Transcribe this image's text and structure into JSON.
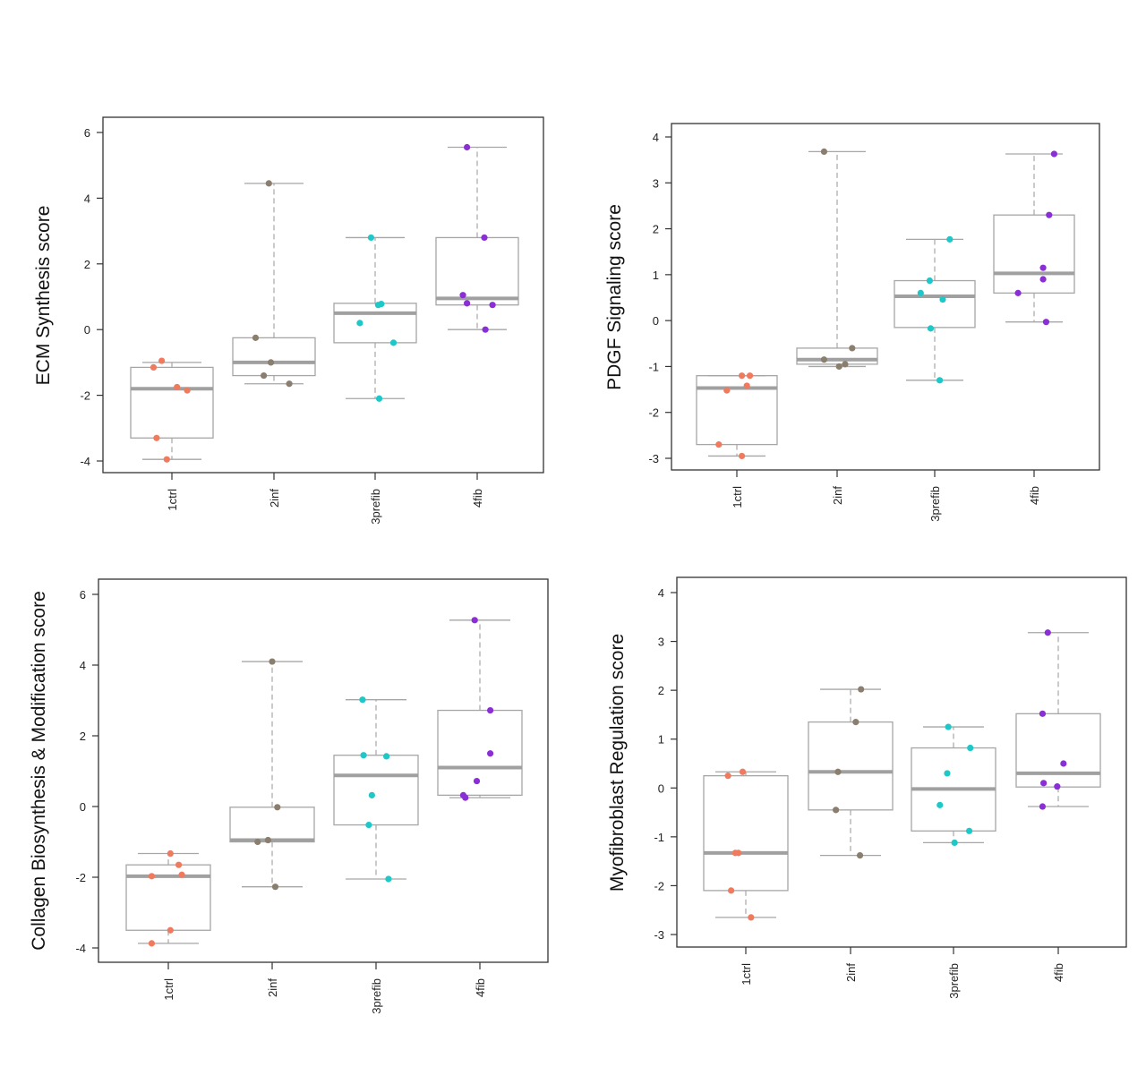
{
  "chart_data": [
    {
      "type": "box",
      "panel": "top-left",
      "title": "",
      "xlabel": "",
      "ylabel": "ECM Synthesis score",
      "ylim": [
        -4.4,
        6.4
      ],
      "yticks": [
        -4,
        -2,
        0,
        2,
        4,
        6
      ],
      "ytick_labels": [
        "-4",
        "-2",
        "0",
        "2",
        "4",
        "6"
      ],
      "categories": [
        "1ctrl",
        "2inf",
        "3prefib",
        "4fib"
      ],
      "colors": [
        "#f07a5e",
        "#8a7e6e",
        "#1ec8c8",
        "#8a2ed6"
      ],
      "grid": false,
      "boxes": [
        {
          "q1": -3.3,
          "median": -1.8,
          "q3": -1.15,
          "whisker_low": -3.95,
          "whisker_high": -1.0
        },
        {
          "q1": -1.4,
          "median": -1.0,
          "q3": -0.25,
          "whisker_low": -1.65,
          "whisker_high": 4.45
        },
        {
          "q1": -0.4,
          "median": 0.5,
          "q3": 0.8,
          "whisker_low": -2.1,
          "whisker_high": 2.8
        },
        {
          "q1": 0.75,
          "median": 0.95,
          "q3": 2.8,
          "whisker_low": 0.0,
          "whisker_high": 5.55
        }
      ],
      "points": [
        [
          {
            "x": -0.1,
            "y": -0.95
          },
          {
            "x": -0.18,
            "y": -1.15
          },
          {
            "x": 0.05,
            "y": -1.75
          },
          {
            "x": 0.15,
            "y": -1.85
          },
          {
            "x": -0.15,
            "y": -3.3
          },
          {
            "x": -0.05,
            "y": -3.95
          }
        ],
        [
          {
            "x": -0.18,
            "y": -0.25
          },
          {
            "x": -0.03,
            "y": -1.0
          },
          {
            "x": -0.1,
            "y": -1.4
          },
          {
            "x": 0.15,
            "y": -1.65
          },
          {
            "x": -0.05,
            "y": 4.45
          }
        ],
        [
          {
            "x": -0.04,
            "y": 2.8
          },
          {
            "x": 0.03,
            "y": 0.75
          },
          {
            "x": 0.06,
            "y": 0.78
          },
          {
            "x": -0.15,
            "y": 0.2
          },
          {
            "x": 0.18,
            "y": -0.4
          },
          {
            "x": 0.04,
            "y": -2.1
          }
        ],
        [
          {
            "x": -0.1,
            "y": 5.55
          },
          {
            "x": 0.07,
            "y": 2.8
          },
          {
            "x": -0.14,
            "y": 1.05
          },
          {
            "x": -0.1,
            "y": 0.8
          },
          {
            "x": 0.15,
            "y": 0.75
          },
          {
            "x": 0.08,
            "y": 0.0
          }
        ]
      ]
    },
    {
      "type": "box",
      "panel": "top-right",
      "title": "",
      "xlabel": "",
      "ylabel": "PDGF Signaling score",
      "ylim": [
        -3.25,
        4.3
      ],
      "yticks": [
        -3,
        -2,
        -1,
        0,
        1,
        2,
        3,
        4
      ],
      "ytick_labels": [
        "-3",
        "-2",
        "-1",
        "0",
        "1",
        "2",
        "3",
        "4"
      ],
      "categories": [
        "1ctrl",
        "2inf",
        "3prefib",
        "4fib"
      ],
      "colors": [
        "#f07a5e",
        "#8a7e6e",
        "#1ec8c8",
        "#8a2ed6"
      ],
      "grid": false,
      "boxes": [
        {
          "q1": -2.7,
          "median": -1.47,
          "q3": -1.2,
          "whisker_low": -2.95,
          "whisker_high": -1.2
        },
        {
          "q1": -0.95,
          "median": -0.85,
          "q3": -0.6,
          "whisker_low": -1.0,
          "whisker_high": 3.68
        },
        {
          "q1": -0.15,
          "median": 0.53,
          "q3": 0.87,
          "whisker_low": -1.3,
          "whisker_high": 1.77
        },
        {
          "q1": 0.6,
          "median": 1.03,
          "q3": 2.3,
          "whisker_low": -0.03,
          "whisker_high": 3.63
        }
      ],
      "points": [
        [
          {
            "x": 0.05,
            "y": -1.2
          },
          {
            "x": 0.13,
            "y": -1.2
          },
          {
            "x": 0.1,
            "y": -1.42
          },
          {
            "x": -0.1,
            "y": -1.52
          },
          {
            "x": -0.18,
            "y": -2.7
          },
          {
            "x": 0.05,
            "y": -2.95
          }
        ],
        [
          {
            "x": -0.13,
            "y": 3.68
          },
          {
            "x": 0.15,
            "y": -0.6
          },
          {
            "x": -0.13,
            "y": -0.85
          },
          {
            "x": 0.08,
            "y": -0.95
          },
          {
            "x": 0.02,
            "y": -1.0
          }
        ],
        [
          {
            "x": 0.15,
            "y": 1.77
          },
          {
            "x": -0.05,
            "y": 0.87
          },
          {
            "x": -0.14,
            "y": 0.6
          },
          {
            "x": 0.08,
            "y": 0.46
          },
          {
            "x": -0.04,
            "y": -0.17
          },
          {
            "x": 0.05,
            "y": -1.3
          }
        ],
        [
          {
            "x": 0.2,
            "y": 3.63
          },
          {
            "x": 0.15,
            "y": 2.3
          },
          {
            "x": 0.09,
            "y": 1.15
          },
          {
            "x": 0.09,
            "y": 0.9
          },
          {
            "x": -0.16,
            "y": 0.6
          },
          {
            "x": 0.12,
            "y": -0.03
          }
        ]
      ]
    },
    {
      "type": "box",
      "panel": "bottom-left",
      "title": "",
      "xlabel": "",
      "ylabel": "Collagen Biosynthesis & Modification score",
      "ylim": [
        -4.4,
        6.4
      ],
      "yticks": [
        -4,
        -2,
        0,
        2,
        4,
        6
      ],
      "ytick_labels": [
        "-4",
        "-2",
        "0",
        "2",
        "4",
        "6"
      ],
      "categories": [
        "1ctrl",
        "2inf",
        "3prefib",
        "4fib"
      ],
      "colors": [
        "#f07a5e",
        "#8a7e6e",
        "#1ec8c8",
        "#8a2ed6"
      ],
      "grid": false,
      "boxes": [
        {
          "q1": -3.5,
          "median": -1.97,
          "q3": -1.65,
          "whisker_low": -3.87,
          "whisker_high": -1.33
        },
        {
          "q1": -1.0,
          "median": -0.95,
          "q3": -0.02,
          "whisker_low": -2.27,
          "whisker_high": 4.1
        },
        {
          "q1": -0.52,
          "median": 0.88,
          "q3": 1.45,
          "whisker_low": -2.05,
          "whisker_high": 3.02
        },
        {
          "q1": 0.32,
          "median": 1.1,
          "q3": 2.72,
          "whisker_low": 0.25,
          "whisker_high": 5.27
        }
      ],
      "points": [
        [
          {
            "x": 0.02,
            "y": -1.33
          },
          {
            "x": 0.1,
            "y": -1.65
          },
          {
            "x": -0.16,
            "y": -1.97
          },
          {
            "x": 0.13,
            "y": -1.93
          },
          {
            "x": 0.02,
            "y": -3.5
          },
          {
            "x": -0.16,
            "y": -3.87
          }
        ],
        [
          {
            "x": 0.0,
            "y": 4.1
          },
          {
            "x": 0.05,
            "y": -0.02
          },
          {
            "x": -0.04,
            "y": -0.95
          },
          {
            "x": -0.14,
            "y": -1.0
          },
          {
            "x": 0.03,
            "y": -2.27
          }
        ],
        [
          {
            "x": -0.13,
            "y": 3.02
          },
          {
            "x": -0.12,
            "y": 1.45
          },
          {
            "x": 0.1,
            "y": 1.42
          },
          {
            "x": -0.04,
            "y": 0.32
          },
          {
            "x": -0.07,
            "y": -0.52
          },
          {
            "x": 0.12,
            "y": -2.05
          }
        ],
        [
          {
            "x": -0.05,
            "y": 5.27
          },
          {
            "x": 0.1,
            "y": 2.72
          },
          {
            "x": 0.1,
            "y": 1.5
          },
          {
            "x": -0.03,
            "y": 0.72
          },
          {
            "x": -0.16,
            "y": 0.32
          },
          {
            "x": -0.14,
            "y": 0.25
          }
        ]
      ]
    },
    {
      "type": "box",
      "panel": "bottom-right",
      "title": "",
      "xlabel": "",
      "ylabel": "Myofibroblast Regulation score",
      "ylim": [
        -3.3,
        4.3
      ],
      "yticks": [
        -3,
        -2,
        -1,
        0,
        1,
        2,
        3,
        4
      ],
      "ytick_labels": [
        "-3",
        "-2",
        "-1",
        "0",
        "1",
        "2",
        "3",
        "4"
      ],
      "categories": [
        "1ctrl",
        "2inf",
        "3prefib",
        "4fib"
      ],
      "colors": [
        "#f07a5e",
        "#8a7e6e",
        "#1ec8c8",
        "#8a2ed6"
      ],
      "grid": false,
      "boxes": [
        {
          "q1": -2.1,
          "median": -1.33,
          "q3": 0.25,
          "whisker_low": -2.65,
          "whisker_high": 0.33
        },
        {
          "q1": -0.45,
          "median": 0.33,
          "q3": 1.35,
          "whisker_low": -1.38,
          "whisker_high": 2.02
        },
        {
          "q1": -0.88,
          "median": -0.02,
          "q3": 0.82,
          "whisker_low": -1.12,
          "whisker_high": 1.25
        },
        {
          "q1": 0.02,
          "median": 0.3,
          "q3": 1.52,
          "whisker_low": -0.38,
          "whisker_high": 3.18
        }
      ],
      "points": [
        [
          {
            "x": -0.17,
            "y": 0.25
          },
          {
            "x": -0.03,
            "y": 0.33
          },
          {
            "x": -0.1,
            "y": -1.33
          },
          {
            "x": -0.07,
            "y": -1.33
          },
          {
            "x": -0.14,
            "y": -2.1
          },
          {
            "x": 0.05,
            "y": -2.65
          }
        ],
        [
          {
            "x": 0.1,
            "y": 2.02
          },
          {
            "x": 0.05,
            "y": 1.35
          },
          {
            "x": -0.12,
            "y": 0.33
          },
          {
            "x": -0.14,
            "y": -0.45
          },
          {
            "x": 0.09,
            "y": -1.38
          }
        ],
        [
          {
            "x": -0.05,
            "y": 1.25
          },
          {
            "x": 0.16,
            "y": 0.82
          },
          {
            "x": -0.06,
            "y": 0.3
          },
          {
            "x": -0.13,
            "y": -0.35
          },
          {
            "x": 0.15,
            "y": -0.88
          },
          {
            "x": 0.01,
            "y": -1.12
          }
        ],
        [
          {
            "x": -0.1,
            "y": 3.18
          },
          {
            "x": -0.15,
            "y": 1.52
          },
          {
            "x": 0.05,
            "y": 0.5
          },
          {
            "x": -0.14,
            "y": 0.1
          },
          {
            "x": -0.01,
            "y": 0.03
          },
          {
            "x": -0.15,
            "y": -0.38
          }
        ]
      ]
    }
  ]
}
